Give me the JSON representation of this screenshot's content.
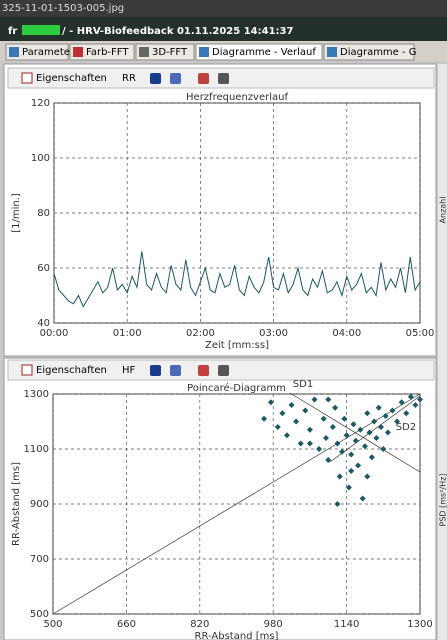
{
  "file_name": "325-11-01-1503-005.jpg",
  "window": {
    "title_prefix": "fr",
    "title": "/ - HRV-Biofeedback 01.11.2025 14:41:37"
  },
  "tabs": [
    "Parameter",
    "Farb-FFT",
    "3D-FFT",
    "Diagramme - Verlauf",
    "Diagramme - G"
  ],
  "toolbars": [
    {
      "properties": "Eigenschaften",
      "mode": "RR"
    },
    {
      "properties": "Eigenschaften",
      "mode": "HF"
    }
  ],
  "side_labels": [
    "Anzahl",
    "PSD [ms²/Hz]"
  ],
  "chart_data": [
    {
      "type": "line",
      "title": "Herzfrequenzverlauf",
      "y_label": "[1/min.]",
      "x_label": "Zeit [mm:ss]",
      "color": "#1d5866",
      "grid": true,
      "xlim": [
        0,
        300
      ],
      "xticks": [
        {
          "value": 0,
          "label": "00:00"
        },
        {
          "value": 60,
          "label": "01:00"
        },
        {
          "value": 120,
          "label": "02:00"
        },
        {
          "value": 180,
          "label": "03:00"
        },
        {
          "value": 240,
          "label": "04:00"
        },
        {
          "value": 300,
          "label": "05:00"
        }
      ],
      "ylim": [
        40,
        120
      ],
      "yticks": [
        40,
        60,
        80,
        100,
        120
      ],
      "x": [
        0,
        4,
        8,
        12,
        16,
        20,
        24,
        28,
        32,
        36,
        40,
        44,
        48,
        52,
        56,
        60,
        64,
        68,
        72,
        76,
        80,
        84,
        88,
        92,
        96,
        100,
        104,
        108,
        112,
        116,
        120,
        124,
        128,
        132,
        136,
        140,
        144,
        148,
        152,
        156,
        160,
        164,
        168,
        172,
        176,
        180,
        184,
        188,
        192,
        196,
        200,
        204,
        208,
        212,
        216,
        220,
        224,
        228,
        232,
        236,
        240,
        244,
        248,
        252,
        256,
        260,
        264,
        268,
        272,
        276,
        280,
        284,
        288,
        292,
        296,
        300
      ],
      "values": [
        58,
        52,
        50,
        48,
        47,
        50,
        46,
        49,
        52,
        55,
        51,
        53,
        60,
        52,
        54,
        51,
        57,
        53,
        66,
        54,
        52,
        58,
        53,
        51,
        61,
        54,
        52,
        63,
        53,
        50,
        55,
        60,
        52,
        51,
        58,
        53,
        54,
        61,
        52,
        50,
        57,
        53,
        51,
        55,
        64,
        53,
        52,
        58,
        51,
        54,
        60,
        52,
        50,
        56,
        53,
        59,
        51,
        52,
        55,
        50,
        57,
        52,
        54,
        58,
        51,
        53,
        50,
        62,
        52,
        56,
        53,
        60,
        51,
        64,
        52,
        55
      ]
    },
    {
      "type": "scatter",
      "title": "Poincaré-Diagramm",
      "y_label": "RR-Abstand [ms]",
      "x_label": "RR-Abstand [ms]",
      "color": "#1d5866",
      "grid": true,
      "annotations": [
        "SD1",
        "SD2"
      ],
      "xlim": [
        500,
        1300
      ],
      "xticks": [
        500,
        660,
        820,
        980,
        1140,
        1300
      ],
      "ylim": [
        500,
        1300
      ],
      "yticks": [
        500,
        700,
        900,
        1100,
        1300
      ],
      "x": [
        960,
        975,
        990,
        1000,
        1010,
        1020,
        1030,
        1040,
        1050,
        1060,
        1070,
        1080,
        1090,
        1095,
        1100,
        1110,
        1115,
        1120,
        1125,
        1130,
        1135,
        1140,
        1145,
        1150,
        1155,
        1160,
        1165,
        1170,
        1175,
        1180,
        1185,
        1190,
        1195,
        1200,
        1205,
        1210,
        1215,
        1220,
        1225,
        1230,
        1240,
        1250,
        1260,
        1270,
        1280,
        1290,
        1300,
        1120,
        1150,
        1185,
        1060,
        1100
      ],
      "values": [
        1210,
        1270,
        1180,
        1230,
        1150,
        1260,
        1200,
        1120,
        1240,
        1170,
        1280,
        1100,
        1210,
        1140,
        1060,
        1180,
        1250,
        1120,
        1000,
        1090,
        1210,
        1150,
        960,
        1080,
        1190,
        1130,
        1040,
        1170,
        920,
        1110,
        1230,
        1160,
        1070,
        1200,
        1140,
        1250,
        1180,
        1100,
        1220,
        1160,
        1240,
        1200,
        1270,
        1230,
        1290,
        1260,
        1280,
        900,
        1020,
        1000,
        1120,
        1280
      ]
    }
  ]
}
